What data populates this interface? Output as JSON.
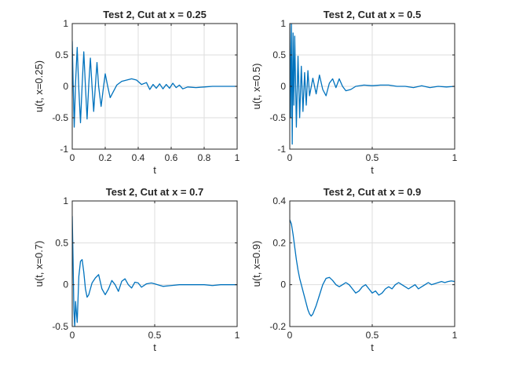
{
  "colors": {
    "series": "#0072bd",
    "axis": "#262626",
    "grid": "#dedede"
  },
  "chart_data": [
    {
      "type": "line",
      "title": "Test 2, Cut at x = 0.25",
      "xlabel": "t",
      "ylabel": "u(t, x=0.25)",
      "xlim": [
        0,
        1
      ],
      "ylim": [
        -1,
        1
      ],
      "xticks": [
        0,
        0.2,
        0.4,
        0.6,
        0.8,
        1
      ],
      "xtick_labels": [
        "0",
        "0.2",
        "0.4",
        "0.6",
        "0.8",
        "1"
      ],
      "yticks": [
        -1,
        -0.5,
        0,
        0.5,
        1
      ],
      "ytick_labels": [
        "-1",
        "-0.5",
        "0",
        "0.5",
        "1"
      ],
      "grid": true,
      "series": [
        {
          "x": [
            0,
            0.005,
            0.012,
            0.02,
            0.03,
            0.04,
            0.05,
            0.06,
            0.07,
            0.08,
            0.09,
            0.1,
            0.11,
            0.12,
            0.13,
            0.14,
            0.15,
            0.16,
            0.175,
            0.19,
            0.2,
            0.215,
            0.23,
            0.25,
            0.27,
            0.3,
            0.33,
            0.36,
            0.39,
            0.42,
            0.45,
            0.47,
            0.49,
            0.51,
            0.53,
            0.55,
            0.57,
            0.59,
            0.61,
            0.63,
            0.65,
            0.67,
            0.7,
            0.75,
            0.8,
            0.85,
            0.9,
            0.95,
            1.0
          ],
          "y": [
            0.72,
            0.1,
            -0.65,
            0.05,
            0.62,
            -0.05,
            -0.58,
            0.02,
            0.55,
            0.0,
            -0.52,
            0.02,
            0.45,
            0.0,
            -0.4,
            0.0,
            0.38,
            0.0,
            -0.32,
            0.0,
            0.2,
            0.0,
            -0.18,
            -0.08,
            0.02,
            0.08,
            0.1,
            0.12,
            0.1,
            0.03,
            0.06,
            -0.05,
            0.03,
            -0.03,
            0.04,
            -0.04,
            0.03,
            -0.03,
            0.05,
            -0.02,
            0.02,
            -0.04,
            -0.01,
            -0.02,
            -0.01,
            0.0,
            0.0,
            0.0,
            0.0
          ]
        }
      ]
    },
    {
      "type": "line",
      "title": "Test 2, Cut at x = 0.5",
      "xlabel": "t",
      "ylabel": "u(t, x=0.5)",
      "xlim": [
        0,
        1
      ],
      "ylim": [
        -1,
        1
      ],
      "xticks": [
        0,
        0.5,
        1
      ],
      "xtick_labels": [
        "0",
        "0.5",
        "1"
      ],
      "yticks": [
        -1,
        -0.5,
        0,
        0.5,
        1
      ],
      "ytick_labels": [
        "-1",
        "-0.5",
        "0",
        "0.5",
        "1"
      ],
      "grid": true,
      "series": [
        {
          "x": [
            0,
            0.005,
            0.01,
            0.015,
            0.02,
            0.025,
            0.03,
            0.04,
            0.05,
            0.06,
            0.07,
            0.08,
            0.09,
            0.1,
            0.11,
            0.12,
            0.14,
            0.16,
            0.18,
            0.2,
            0.22,
            0.24,
            0.26,
            0.28,
            0.3,
            0.32,
            0.34,
            0.37,
            0.4,
            0.45,
            0.5,
            0.55,
            0.6,
            0.65,
            0.7,
            0.75,
            0.8,
            0.85,
            0.9,
            0.95,
            1.0
          ],
          "y": [
            1.0,
            -0.5,
            1.0,
            -0.92,
            0.85,
            -0.3,
            0.8,
            -0.65,
            0.48,
            -0.5,
            0.32,
            -0.4,
            0.22,
            -0.3,
            0.25,
            -0.15,
            0.13,
            -0.12,
            0.18,
            -0.05,
            -0.15,
            0.05,
            0.12,
            -0.02,
            0.12,
            0.0,
            -0.07,
            -0.05,
            0.0,
            0.02,
            0.01,
            0.02,
            0.02,
            0.0,
            0.0,
            -0.02,
            0.01,
            -0.02,
            0.0,
            -0.01,
            0.0
          ]
        }
      ]
    },
    {
      "type": "line",
      "title": "Test 2, Cut at x = 0.7",
      "xlabel": "t",
      "ylabel": "u(t, x=0.7)",
      "xlim": [
        0,
        1
      ],
      "ylim": [
        -0.5,
        1
      ],
      "xticks": [
        0,
        0.5,
        1
      ],
      "xtick_labels": [
        "0",
        "0.5",
        "1"
      ],
      "yticks": [
        -0.5,
        0,
        0.5,
        1
      ],
      "ytick_labels": [
        "-0.5",
        "0",
        "0.5",
        "1"
      ],
      "grid": true,
      "series": [
        {
          "x": [
            0,
            0.005,
            0.01,
            0.015,
            0.02,
            0.03,
            0.04,
            0.05,
            0.06,
            0.07,
            0.08,
            0.09,
            0.1,
            0.11,
            0.12,
            0.14,
            0.16,
            0.18,
            0.2,
            0.22,
            0.24,
            0.26,
            0.28,
            0.3,
            0.32,
            0.34,
            0.36,
            0.38,
            0.4,
            0.42,
            0.45,
            0.48,
            0.5,
            0.55,
            0.6,
            0.65,
            0.7,
            0.75,
            0.8,
            0.85,
            0.9,
            0.95,
            1.0
          ],
          "y": [
            0.82,
            0.3,
            -0.3,
            -0.5,
            -0.2,
            -0.45,
            0.1,
            0.28,
            0.3,
            0.15,
            -0.05,
            -0.15,
            -0.12,
            -0.05,
            0.02,
            0.08,
            0.12,
            -0.05,
            -0.12,
            -0.05,
            0.05,
            0.0,
            -0.08,
            0.04,
            0.07,
            0.0,
            -0.04,
            0.03,
            0.02,
            -0.03,
            0.01,
            0.02,
            0.01,
            -0.02,
            -0.01,
            0.0,
            0.0,
            0.0,
            0.0,
            -0.01,
            0.0,
            0.0,
            0.0
          ]
        }
      ]
    },
    {
      "type": "line",
      "title": "Test 2, Cut at x = 0.9",
      "xlabel": "t",
      "ylabel": "u(t, x=0.9)",
      "xlim": [
        0,
        1
      ],
      "ylim": [
        -0.2,
        0.4
      ],
      "xticks": [
        0,
        0.5,
        1
      ],
      "xtick_labels": [
        "0",
        "0.5",
        "1"
      ],
      "yticks": [
        -0.2,
        0,
        0.2,
        0.4
      ],
      "ytick_labels": [
        "-0.2",
        "0",
        "0.2",
        "0.4"
      ],
      "grid": true,
      "series": [
        {
          "x": [
            0,
            0.01,
            0.02,
            0.03,
            0.04,
            0.05,
            0.06,
            0.07,
            0.08,
            0.09,
            0.1,
            0.11,
            0.12,
            0.13,
            0.14,
            0.16,
            0.18,
            0.2,
            0.22,
            0.24,
            0.26,
            0.28,
            0.3,
            0.32,
            0.34,
            0.36,
            0.38,
            0.4,
            0.42,
            0.44,
            0.46,
            0.48,
            0.5,
            0.52,
            0.54,
            0.56,
            0.58,
            0.6,
            0.62,
            0.64,
            0.66,
            0.68,
            0.7,
            0.72,
            0.74,
            0.76,
            0.78,
            0.8,
            0.82,
            0.84,
            0.86,
            0.88,
            0.9,
            0.92,
            0.94,
            0.96,
            0.98,
            1.0
          ],
          "y": [
            0.31,
            0.29,
            0.24,
            0.18,
            0.12,
            0.07,
            0.03,
            0.0,
            -0.03,
            -0.06,
            -0.09,
            -0.12,
            -0.14,
            -0.15,
            -0.14,
            -0.1,
            -0.05,
            0.0,
            0.03,
            0.035,
            0.02,
            0.0,
            -0.01,
            0.0,
            0.01,
            0.0,
            -0.02,
            -0.04,
            -0.03,
            -0.01,
            0.0,
            -0.02,
            -0.04,
            -0.03,
            -0.05,
            -0.04,
            -0.02,
            -0.01,
            -0.02,
            0.0,
            0.01,
            0.0,
            -0.01,
            -0.02,
            -0.01,
            0.0,
            -0.02,
            -0.01,
            0.0,
            0.01,
            0.0,
            0.005,
            0.01,
            0.015,
            0.01,
            0.015,
            0.018,
            0.015
          ]
        }
      ]
    }
  ]
}
